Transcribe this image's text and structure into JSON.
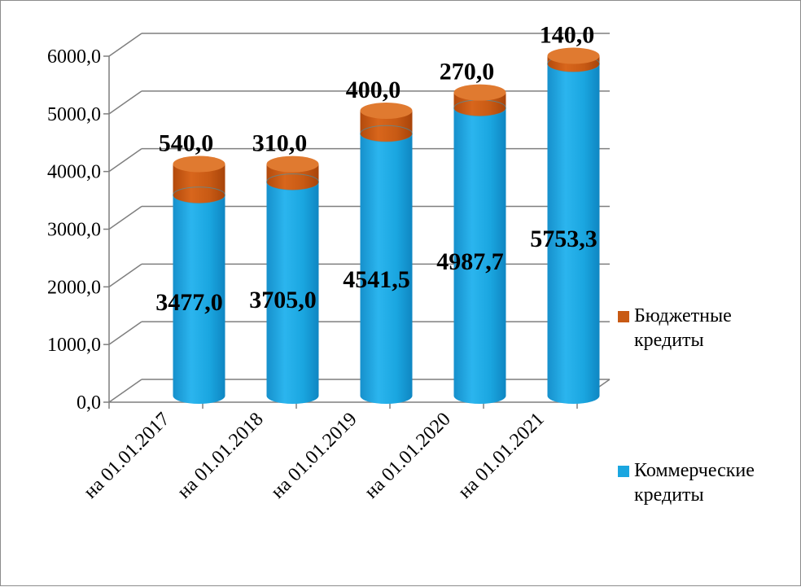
{
  "chart_data": {
    "type": "bar",
    "stacked": true,
    "categories": [
      "на 01.01.2017",
      "на 01.01.2018",
      "на 01.01.2019",
      "на 01.01.2020",
      "на 01.01.2021"
    ],
    "series": [
      {
        "name": "Коммерческие кредиты",
        "values": [
          3477.0,
          3705.0,
          4541.5,
          4987.7,
          5753.3
        ],
        "labels": [
          "3477,0",
          "3705,0",
          "4541,5",
          "4987,7",
          "5753,3"
        ],
        "color": "#1aa6e0"
      },
      {
        "name": "Бюджетные кредиты",
        "values": [
          540.0,
          310.0,
          400.0,
          270.0,
          140.0
        ],
        "labels": [
          "540,0",
          "310,0",
          "400,0",
          "270,0",
          "140,0"
        ],
        "color": "#c85a14"
      }
    ],
    "yticks": [
      "0,0",
      "1000,0",
      "2000,0",
      "3000,0",
      "4000,0",
      "5000,0",
      "6000,0"
    ],
    "ylim": [
      0,
      6000
    ],
    "grid": true,
    "legend_position": "right"
  },
  "legend": {
    "items": [
      {
        "label": "Бюджетные кредиты",
        "color": "#c85a14"
      },
      {
        "label": "Коммерческие кредиты",
        "color": "#1aa6e0"
      }
    ]
  }
}
